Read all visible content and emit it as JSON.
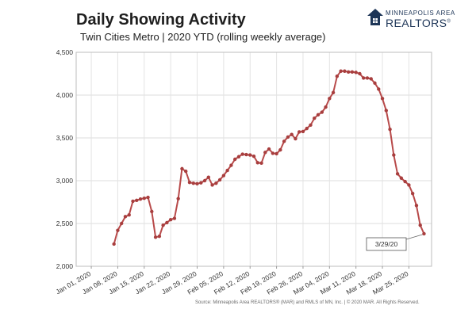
{
  "header": {
    "title": "Daily Showing Activity",
    "subtitle": "Twin Cities Metro  |  2020 YTD (rolling weekly average)"
  },
  "logo": {
    "line1": "MINNEAPOLIS AREA",
    "line2": "REALTORS",
    "mark": "®",
    "icon": "house-icon",
    "color": "#1d3557"
  },
  "footer": {
    "source": "Source:    Minneapolis Area REALTORS® (MAR) and RMLS of MN, Inc.  |  © 2020 MAR. All Rights Reserved."
  },
  "chart_data": {
    "type": "line",
    "title": "Daily Showing Activity",
    "subtitle": "Twin Cities Metro  |  2020 YTD (rolling weekly average)",
    "xlabel": "",
    "ylabel": "",
    "x_range": [
      "2019-12-28",
      "2020-03-31"
    ],
    "ylim": [
      2000,
      4500
    ],
    "yticks": [
      2000,
      2500,
      3000,
      3500,
      4000,
      4500
    ],
    "ytick_labels": [
      "2,000",
      "2,500",
      "3,000",
      "3,500",
      "4,000",
      "4,500"
    ],
    "xticks": [
      "2020-01-01",
      "2020-01-08",
      "2020-01-15",
      "2020-01-22",
      "2020-01-29",
      "2020-02-05",
      "2020-02-12",
      "2020-02-19",
      "2020-02-26",
      "2020-03-04",
      "2020-03-11",
      "2020-03-18",
      "2020-03-25"
    ],
    "xtick_labels": [
      "Jan 01, 2020",
      "Jan 08, 2020",
      "Jan 15, 2020",
      "Jan 22, 2020",
      "Jan 29, 2020",
      "Feb 05, 2020",
      "Feb 12, 2020",
      "Feb 19, 2020",
      "Feb 26, 2020",
      "Mar 04, 2020",
      "Mar 11, 2020",
      "Mar 18, 2020",
      "Mar 25, 2020"
    ],
    "grid": true,
    "line_color": "#b84a4a",
    "marker_color": "#a83e3e",
    "series": [
      {
        "x": [
          "2020-01-07",
          "2020-01-08",
          "2020-01-09",
          "2020-01-10",
          "2020-01-11",
          "2020-01-12",
          "2020-01-13",
          "2020-01-14",
          "2020-01-15",
          "2020-01-16",
          "2020-01-17",
          "2020-01-18",
          "2020-01-19",
          "2020-01-20",
          "2020-01-21",
          "2020-01-22",
          "2020-01-23",
          "2020-01-24",
          "2020-01-25",
          "2020-01-26",
          "2020-01-27",
          "2020-01-28",
          "2020-01-29",
          "2020-01-30",
          "2020-01-31",
          "2020-02-01",
          "2020-02-02",
          "2020-02-03",
          "2020-02-04",
          "2020-02-05",
          "2020-02-06",
          "2020-02-07",
          "2020-02-08",
          "2020-02-09",
          "2020-02-10",
          "2020-02-11",
          "2020-02-12",
          "2020-02-13",
          "2020-02-14",
          "2020-02-15",
          "2020-02-16",
          "2020-02-17",
          "2020-02-18",
          "2020-02-19",
          "2020-02-20",
          "2020-02-21",
          "2020-02-22",
          "2020-02-23",
          "2020-02-24",
          "2020-02-25",
          "2020-02-26",
          "2020-02-27",
          "2020-02-28",
          "2020-02-29",
          "2020-03-01",
          "2020-03-02",
          "2020-03-03",
          "2020-03-04",
          "2020-03-05",
          "2020-03-06",
          "2020-03-07",
          "2020-03-08",
          "2020-03-09",
          "2020-03-10",
          "2020-03-11",
          "2020-03-12",
          "2020-03-13",
          "2020-03-14",
          "2020-03-15",
          "2020-03-16",
          "2020-03-17",
          "2020-03-18",
          "2020-03-19",
          "2020-03-20",
          "2020-03-21",
          "2020-03-22",
          "2020-03-23",
          "2020-03-24",
          "2020-03-25",
          "2020-03-26",
          "2020-03-27",
          "2020-03-28",
          "2020-03-29"
        ],
        "y": [
          2260,
          2420,
          2500,
          2580,
          2600,
          2760,
          2770,
          2785,
          2795,
          2805,
          2640,
          2340,
          2350,
          2480,
          2510,
          2545,
          2560,
          2790,
          3140,
          3110,
          2980,
          2970,
          2965,
          2975,
          3000,
          3040,
          2950,
          2970,
          3010,
          3060,
          3120,
          3180,
          3250,
          3280,
          3310,
          3305,
          3300,
          3285,
          3210,
          3205,
          3330,
          3370,
          3320,
          3315,
          3360,
          3460,
          3510,
          3540,
          3490,
          3570,
          3575,
          3610,
          3650,
          3730,
          3770,
          3800,
          3860,
          3960,
          4030,
          4220,
          4280,
          4280,
          4270,
          4270,
          4265,
          4250,
          4200,
          4200,
          4190,
          4140,
          4070,
          3960,
          3820,
          3600,
          3300,
          3080,
          3030,
          2990,
          2950,
          2850,
          2710,
          2480,
          2380
        ]
      }
    ],
    "annotations": [
      {
        "text": "3/29/20",
        "x": "2020-03-29",
        "y": 2380
      }
    ]
  }
}
